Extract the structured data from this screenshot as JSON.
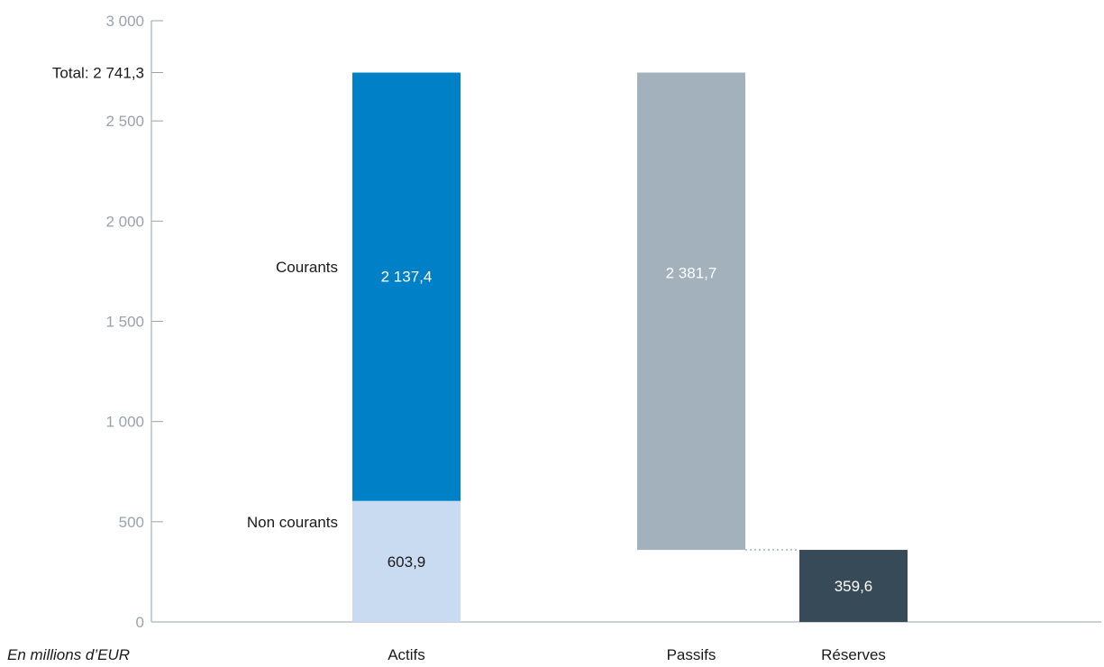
{
  "chart_data": {
    "type": "bar",
    "subtype": "stacked-waterfall",
    "unit_note": "En millions d’EUR",
    "ylim": [
      0,
      3000
    ],
    "yticks": [
      {
        "value": 0,
        "label": "0"
      },
      {
        "value": 500,
        "label": "500"
      },
      {
        "value": 1000,
        "label": "1 000"
      },
      {
        "value": 1500,
        "label": "1 500"
      },
      {
        "value": 2000,
        "label": "2 000"
      },
      {
        "value": 2500,
        "label": "2 500"
      },
      {
        "value": 3000,
        "label": "3 000"
      }
    ],
    "total": {
      "value": 2741.3,
      "label": "Total: 2 741,3"
    },
    "grid": false,
    "colors": {
      "courants": "#0080c6",
      "non_courants": "#c9dbf0",
      "passifs": "#a2b1bc",
      "reserves": "#374a57",
      "axis": "#9aa3ab"
    },
    "categories": [
      "Actifs",
      "Passifs",
      "Réserves"
    ],
    "segments": [
      {
        "key": "non_courants",
        "category": "Actifs",
        "name": "Non courants",
        "value": 603.9,
        "base": 0,
        "label": "603,9",
        "label_color": "#1a1a1a"
      },
      {
        "key": "courants",
        "category": "Actifs",
        "name": "Courants",
        "value": 2137.4,
        "base": 603.9,
        "label": "2 137,4",
        "label_color": "#ffffff"
      },
      {
        "key": "passifs",
        "category": "Passifs",
        "name": "",
        "value": 2381.7,
        "base": 359.6,
        "label": "2 381,7",
        "label_color": "#ffffff"
      },
      {
        "key": "reserves",
        "category": "Réserves",
        "name": "",
        "value": 359.6,
        "base": 0,
        "label": "359,6",
        "label_color": "#ffffff"
      }
    ]
  }
}
